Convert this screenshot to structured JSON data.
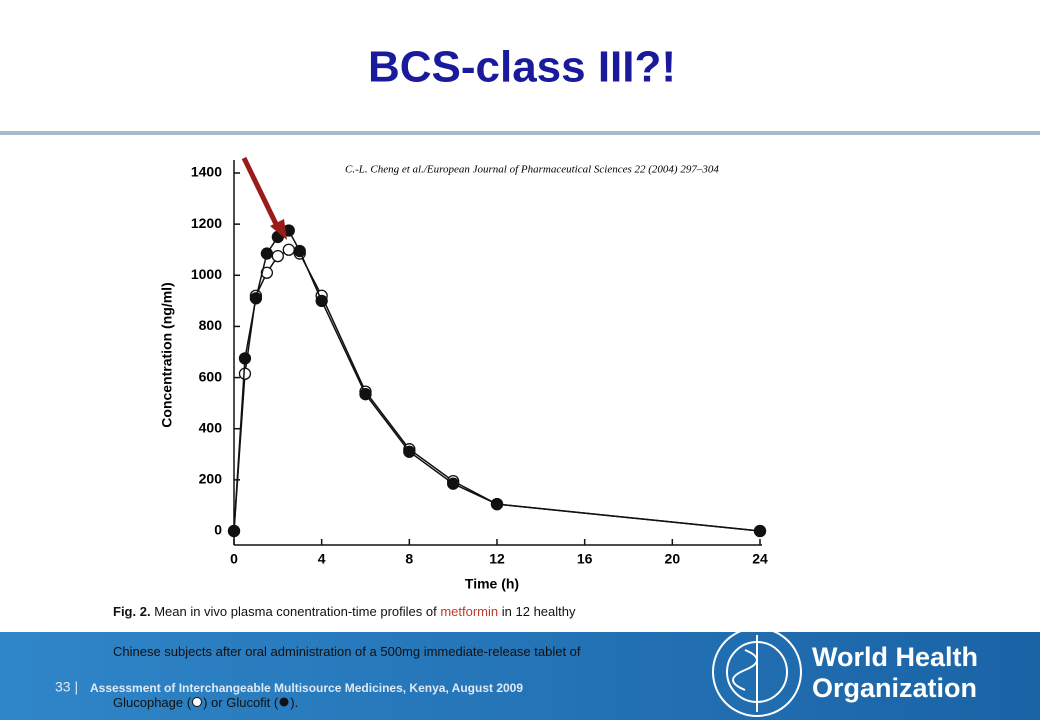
{
  "slide": {
    "title": "BCS-class III?!",
    "page_number": "33 |",
    "footer": "Assessment of Interchangeable Multisource Medicines, Kenya, August 2009",
    "logo_line1": "World Health",
    "logo_line2": "Organization"
  },
  "caption": {
    "label": "Fig. 2.",
    "text1": "Mean in vivo plasma conentration-time profiles of",
    "drug": "metformin",
    "text2": "in 12 healthy",
    "line2": "Chinese subjects after oral administration of a 500mg immediate-release tablet of",
    "open1": "(",
    "mid": ") or",
    "open2": "(",
    "end": ")."
  },
  "chart_data": {
    "type": "line",
    "source": "C.-L. Cheng et al./European Journal of Pharmaceutical Sciences 22 (2004) 297–304",
    "x_label": "Time (h)",
    "y_label": "Concentration (ng/ml)",
    "x": [
      0,
      0.5,
      1,
      1.5,
      2,
      2.5,
      3,
      4,
      6,
      8,
      10,
      12,
      24
    ],
    "series": [
      {
        "name": "Glucophage",
        "color": "#111111",
        "marker": "open",
        "values": [
          0,
          615,
          920,
          1010,
          1075,
          1100,
          1085,
          920,
          545,
          320,
          195,
          105,
          0
        ]
      },
      {
        "name": "Glucofit",
        "color": "#111111",
        "marker": "filled",
        "values": [
          0,
          675,
          910,
          1085,
          1150,
          1175,
          1095,
          900,
          535,
          310,
          185,
          105,
          0
        ]
      }
    ],
    "xlim": [
      0,
      24
    ],
    "xticks": [
      0,
      4,
      8,
      12,
      16,
      20,
      24
    ],
    "ylim": [
      0,
      1400
    ],
    "yticks": [
      0,
      200,
      400,
      600,
      800,
      1000,
      1200,
      1400
    ],
    "grid": false
  }
}
